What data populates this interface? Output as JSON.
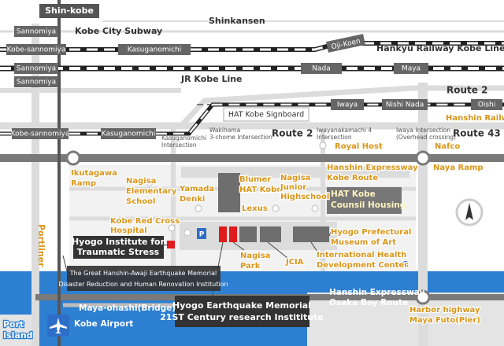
{
  "stations": {
    "shin_kobe": "Shin-kobe",
    "subway_sannomiya": "Sannomiya",
    "hankyu_kobe_sannomiya": "Kobe-sannomiya",
    "hankyu_kasuganomichi": "Kasuganomichi",
    "hankyu_oji_koen": "Oji-Koen",
    "jr_sannomiya": "Sannomiya",
    "jr_nada": "Nada",
    "jr_maya": "Maya",
    "portliner_sannomiya": "Sannomiya",
    "hanshin_kobe_sannomiya": "Kobe-sannomiya",
    "hanshin_kasuganomichi": "Kasuganomichi",
    "hanshin_iwaya": "Iwaya",
    "hanshin_nishi_nada": "Nishi Nada",
    "hanshin_oishi": "Oishi"
  },
  "lines": {
    "subway": "Kobe City Subway",
    "shinkansen": "Shinkansen",
    "hankyu": "Hankyu Railway Kobe Line",
    "jr": "JR Kobe Line",
    "hanshin": "Hanshin Railway",
    "portliner": "Portliner"
  },
  "roads": {
    "route2_upper": "Route 2",
    "route2": "Route 2",
    "route43": "Route 43",
    "signboard": "HAT Kobe Signboard",
    "kasuganomichi_intersection": [
      "Kasuganomichi",
      "Intersection"
    ],
    "wakihama_intersection": [
      "Wakihama",
      "3-chome Intersection"
    ],
    "iwayanakamachi_intersection": [
      "Iwayanakamachi 4",
      "Intersection"
    ],
    "iwaya_intersection": [
      "Iwaya Intersection",
      "(Overhead crossing)"
    ],
    "ikutagawa_ramp": [
      "Ikutagawa",
      "Ramp"
    ],
    "naya_ramp": "Naya Ramp",
    "kobe_route": [
      "Hanshin Expressway",
      "Kobe Route"
    ],
    "osaka_bay_route": [
      "Hanshin Expressway",
      "Osaka Bay Route"
    ],
    "maya_ohashi": "Maya-ohashi(Bridge)",
    "harbor_highway": [
      "Harbor highway",
      "Maya Futo(Pier)"
    ]
  },
  "places": {
    "royal_host": "Royal Host",
    "nafco": "Nafco",
    "nagisa_elementary": [
      "Nagisa",
      "Elementary",
      "School"
    ],
    "yamada_denki": [
      "Yamada",
      "Denki"
    ],
    "blumer": [
      "Blumer",
      "HAT Kobe"
    ],
    "nagisa_junior": [
      "Nagisa",
      "Junior",
      "Highschool"
    ],
    "counsil_housing": [
      "HAT Kobe",
      "Counsil Housing"
    ],
    "lexus": "Lexus",
    "red_cross": [
      "Kobe Red Cross",
      "Hospital"
    ],
    "parking": "P",
    "traumatic_stress": [
      "Hyogo Institute for",
      "Traumatic Stress"
    ],
    "museum": [
      "Hyogo Prefectural",
      "Museum of Art"
    ],
    "nagisa_park": [
      "Nagisa",
      "Park"
    ],
    "jcia": "JCIA",
    "health_center": [
      "International Health",
      "Development Center"
    ],
    "memorial_institution": [
      "The Great Hanshin-Awaji Earthquake Memorial",
      "Disaster Reduction and Human Renovation Institution"
    ],
    "research_institute": [
      "Hyogo Earthquake Memorial",
      "21ST Century research Instititute"
    ],
    "port_island": [
      "Port",
      "Island"
    ],
    "kobe_airport": "Kobe Airport"
  }
}
